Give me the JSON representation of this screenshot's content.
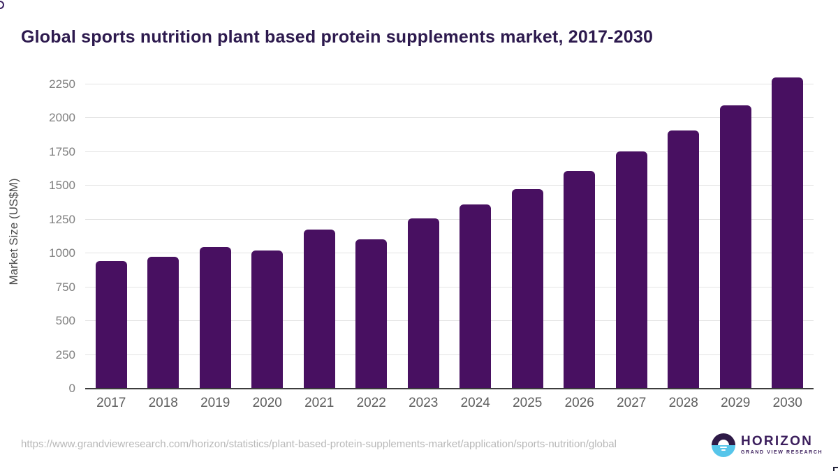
{
  "page": {
    "title": "Global sports nutrition plant based protein supplements market, 2017-2030"
  },
  "chart_data": {
    "type": "bar",
    "title": "Global sports nutrition plant based protein supplements market, 2017-2030",
    "categories": [
      "2017",
      "2018",
      "2019",
      "2020",
      "2021",
      "2022",
      "2023",
      "2024",
      "2025",
      "2026",
      "2027",
      "2028",
      "2029",
      "2030"
    ],
    "values": [
      945,
      975,
      1048,
      1020,
      1175,
      1105,
      1258,
      1362,
      1475,
      1608,
      1752,
      1910,
      2095,
      2300
    ],
    "xlabel": "",
    "ylabel": "Market Size (US$M)",
    "yticks": [
      0,
      250,
      500,
      750,
      1000,
      1250,
      1500,
      1750,
      2000,
      2250
    ],
    "ylim": [
      0,
      2384
    ],
    "grid": true,
    "legend": false,
    "bar_color": "#481061"
  },
  "footer": {
    "source_url": "https://www.grandviewresearch.com/horizon/statistics/plant-based-protein-supplements-market/application/sports-nutrition/global",
    "logo": {
      "name": "HORIZON",
      "subtitle": "GRAND VIEW RESEARCH",
      "icon": "horizon-sun-circle-icon",
      "brand_purple": "#2e1a47",
      "brand_blue": "#56c5ea"
    }
  },
  "colors": {
    "title_text": "#2d1a4e",
    "bar_fill": "#481061",
    "axis_line": "#3d3d3d",
    "gridline": "#e3e3e3",
    "tick_text": "#7f7f7f",
    "x_label_text": "#5e5e5e",
    "url_text": "#b8b8b8"
  }
}
